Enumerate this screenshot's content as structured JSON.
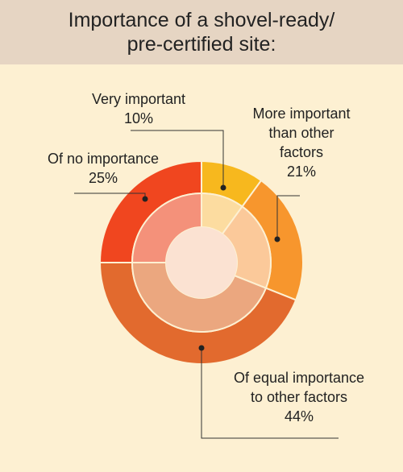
{
  "title_lines": [
    "Importance of a shovel-ready/",
    "pre-certified site:"
  ],
  "colors": {
    "background": "#fdf0d2",
    "header": "#e6d5c3",
    "segments": [
      "#f7b81e",
      "#f7962d",
      "#e26a2e",
      "#f0461f"
    ],
    "inner_segments": [
      "#fcdca0",
      "#fbc99a",
      "#eba77f",
      "#f4917a"
    ],
    "center": "#fbe2d2"
  },
  "chart_data": {
    "type": "pie",
    "title": "Importance of a shovel-ready/ pre-certified site:",
    "categories": [
      "Very important",
      "More important than other factors",
      "Of equal importance to other factors",
      "Of no importance"
    ],
    "values": [
      10,
      21,
      44,
      25
    ],
    "unit": "%",
    "labels": [
      {
        "lines": [
          "Very important",
          "10%"
        ]
      },
      {
        "lines": [
          "More important",
          "than other",
          "factors",
          "21%"
        ]
      },
      {
        "lines": [
          "Of equal importance",
          "to other factors",
          "44%"
        ]
      },
      {
        "lines": [
          "Of no importance",
          "25%"
        ]
      }
    ]
  }
}
